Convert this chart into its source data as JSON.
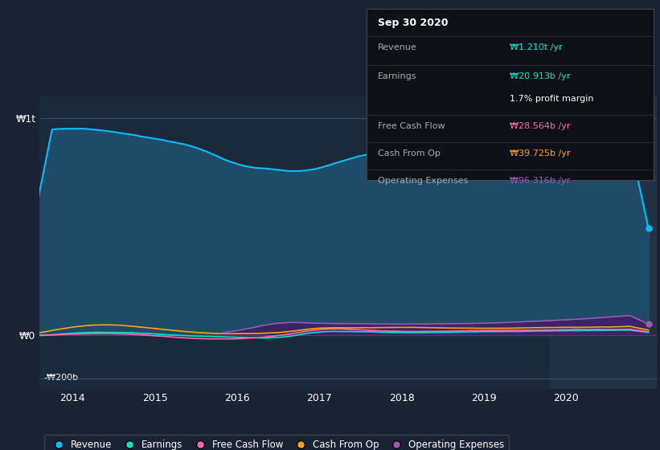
{
  "bg_color": "#1a2333",
  "plot_bg_color": "#1a2a3a",
  "highlight_bg": "#243447",
  "revenue_color": "#00bfff",
  "earnings_color": "#00e5cc",
  "fcf_color": "#ff69b4",
  "cashop_color": "#ffa500",
  "opex_color": "#9b59b6",
  "fill_revenue_color": "#1e4d6b",
  "fill_opex_color": "#3d2066",
  "ylabel_t": "₩1t",
  "ylabel_0": "₩0",
  "ylabel_neg": "-₩200b",
  "x_ticks": [
    2014,
    2015,
    2016,
    2017,
    2018,
    2019,
    2020
  ],
  "tooltip": {
    "title": "Sep 30 2020",
    "revenue_label": "Revenue",
    "revenue_val": "₩1.210t /yr",
    "revenue_color": "#00e5cc",
    "earnings_label": "Earnings",
    "earnings_val": "₩20.913b /yr",
    "earnings_color": "#00e5cc",
    "margin_val": "1.7% profit margin",
    "fcf_label": "Free Cash Flow",
    "fcf_val": "₩28.564b /yr",
    "fcf_color": "#ff69b4",
    "cashop_label": "Cash From Op",
    "cashop_val": "₩39.725b /yr",
    "cashop_color": "#ffa500",
    "opex_label": "Operating Expenses",
    "opex_val": "₩96.316b /yr",
    "opex_color": "#9b59b6"
  },
  "legend_items": [
    {
      "label": "Revenue",
      "color": "#00bfff"
    },
    {
      "label": "Earnings",
      "color": "#00e5cc"
    },
    {
      "label": "Free Cash Flow",
      "color": "#ff69b4"
    },
    {
      "label": "Cash From Op",
      "color": "#ffa500"
    },
    {
      "label": "Operating Expenses",
      "color": "#9b59b6"
    }
  ]
}
